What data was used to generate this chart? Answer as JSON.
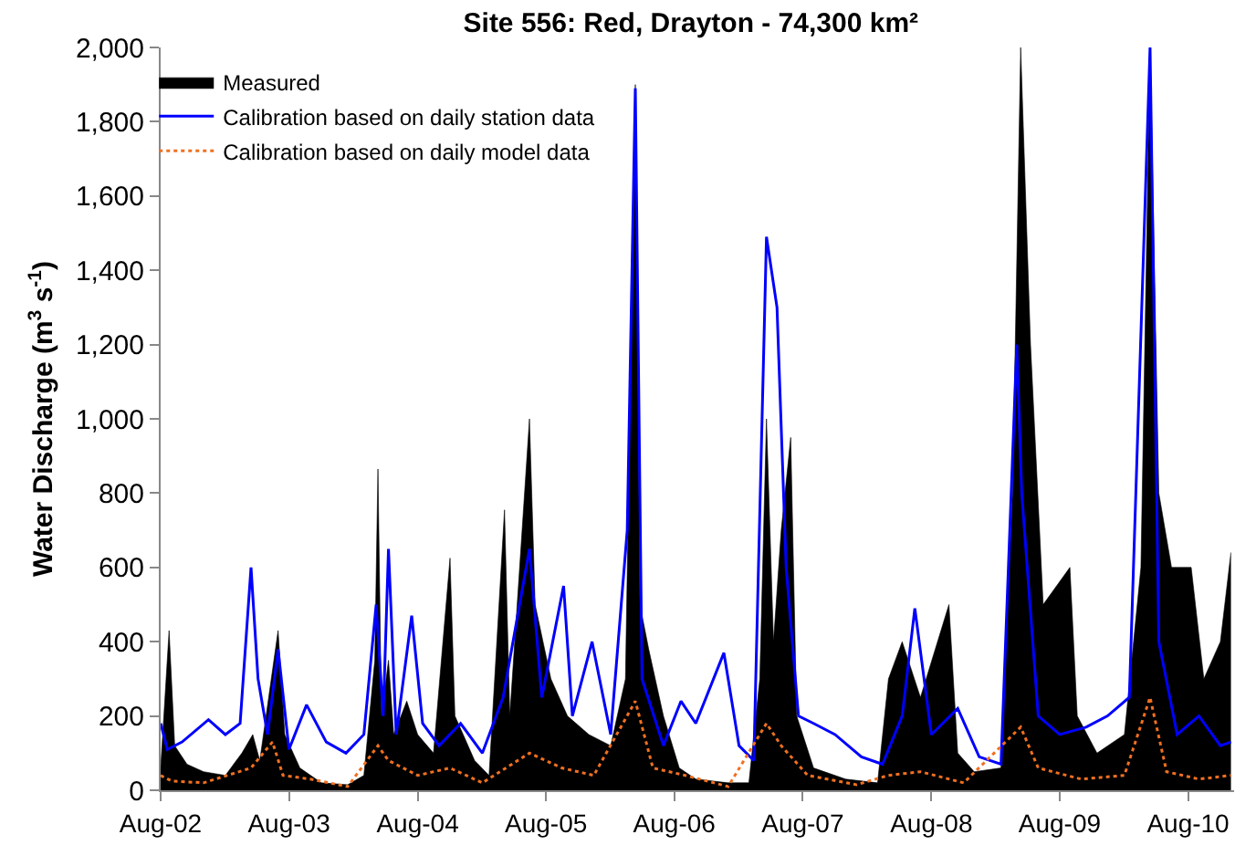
{
  "chart_data": {
    "type": "line",
    "title": "Site 556: Red, Drayton - 74,300 km²",
    "ylabel": "Water Discharge (m$^{3}$ s$^{-1}$)",
    "xlim": [
      "2002-08-01",
      "2010-12-10"
    ],
    "xticks": [
      {
        "value": "2002-08-01",
        "label": "Aug-02"
      },
      {
        "value": "2003-08-01",
        "label": "Aug-03"
      },
      {
        "value": "2004-08-01",
        "label": "Aug-04"
      },
      {
        "value": "2005-08-01",
        "label": "Aug-05"
      },
      {
        "value": "2006-08-01",
        "label": "Aug-06"
      },
      {
        "value": "2007-08-01",
        "label": "Aug-07"
      },
      {
        "value": "2008-08-01",
        "label": "Aug-08"
      },
      {
        "value": "2009-08-01",
        "label": "Aug-09"
      },
      {
        "value": "2010-08-01",
        "label": "Aug-10"
      }
    ],
    "ylim": [
      0,
      2000
    ],
    "yticks": [
      0,
      200,
      400,
      600,
      800,
      {
        "value": 1000,
        "label": "1,000"
      },
      {
        "value": 1200,
        "label": "1,200"
      },
      {
        "value": 1400,
        "label": "1,400"
      },
      {
        "value": 1600,
        "label": "1,600"
      },
      {
        "value": 1800,
        "label": "1,800"
      },
      {
        "value": 2000,
        "label": "2,000"
      }
    ],
    "grid": false,
    "legend": "top left",
    "marker": "none",
    "series": [
      {
        "name": "Measured",
        "type": "area",
        "color": "#000000",
        "x": [
          "2002-08-01",
          "2002-08-25",
          "2002-09-10",
          "2002-10-15",
          "2002-12-01",
          "2003-02-01",
          "2003-03-20",
          "2003-04-20",
          "2003-05-10",
          "2003-07-01",
          "2003-07-20",
          "2003-09-01",
          "2003-11-01",
          "2004-01-15",
          "2004-03-01",
          "2004-04-01",
          "2004-04-10",
          "2004-04-20",
          "2004-05-10",
          "2004-05-25",
          "2004-07-01",
          "2004-08-01",
          "2004-09-15",
          "2004-11-01",
          "2004-11-15",
          "2005-01-10",
          "2005-02-20",
          "2005-04-05",
          "2005-04-20",
          "2005-06-15",
          "2005-07-01",
          "2005-08-15",
          "2005-10-01",
          "2005-12-01",
          "2006-02-01",
          "2006-03-15",
          "2006-04-12",
          "2006-04-25",
          "2006-05-20",
          "2006-07-01",
          "2006-08-15",
          "2006-10-01",
          "2007-01-01",
          "2007-03-01",
          "2007-04-01",
          "2007-04-20",
          "2007-05-10",
          "2007-06-01",
          "2007-06-28",
          "2007-07-15",
          "2007-09-01",
          "2007-12-01",
          "2008-03-01",
          "2008-04-01",
          "2008-05-10",
          "2008-07-01",
          "2008-09-20",
          "2008-10-15",
          "2008-12-01",
          "2009-02-15",
          "2009-03-20",
          "2009-04-12",
          "2009-05-10",
          "2009-06-15",
          "2009-08-30",
          "2009-09-20",
          "2009-11-15",
          "2010-02-01",
          "2010-03-20",
          "2010-04-15",
          "2010-05-10",
          "2010-06-15",
          "2010-08-10",
          "2010-09-15",
          "2010-11-01",
          "2010-12-01"
        ],
        "values": [
          60,
          430,
          120,
          70,
          50,
          40,
          100,
          150,
          80,
          430,
          150,
          60,
          20,
          15,
          40,
          350,
          865,
          200,
          350,
          150,
          240,
          150,
          100,
          625,
          200,
          80,
          40,
          755,
          200,
          1000,
          500,
          300,
          200,
          150,
          120,
          300,
          1900,
          500,
          380,
          200,
          60,
          30,
          20,
          20,
          300,
          1000,
          400,
          700,
          950,
          200,
          60,
          30,
          20,
          300,
          400,
          250,
          500,
          100,
          50,
          60,
          800,
          2000,
          1200,
          500,
          600,
          200,
          100,
          150,
          600,
          2000,
          800,
          600,
          600,
          300,
          400,
          640
        ]
      },
      {
        "name": "Calibration based on daily station data",
        "type": "line",
        "line_style": "solid",
        "color": "#0000ff",
        "x": [
          "2002-08-01",
          "2002-08-20",
          "2002-10-01",
          "2002-12-15",
          "2003-02-01",
          "2003-03-15",
          "2003-04-15",
          "2003-05-05",
          "2003-06-01",
          "2003-07-01",
          "2003-08-01",
          "2003-09-20",
          "2003-11-15",
          "2004-01-10",
          "2004-03-01",
          "2004-04-05",
          "2004-04-25",
          "2004-05-10",
          "2004-06-01",
          "2004-07-15",
          "2004-08-15",
          "2004-10-01",
          "2004-12-01",
          "2005-02-01",
          "2005-04-01",
          "2005-06-15",
          "2005-07-20",
          "2005-09-20",
          "2005-10-15",
          "2005-12-10",
          "2006-02-01",
          "2006-03-20",
          "2006-04-12",
          "2006-05-01",
          "2006-07-01",
          "2006-08-20",
          "2006-10-01",
          "2006-12-20",
          "2007-02-01",
          "2007-03-15",
          "2007-04-20",
          "2007-05-20",
          "2007-06-15",
          "2007-07-20",
          "2007-09-01",
          "2007-11-01",
          "2008-01-15",
          "2008-03-15",
          "2008-05-10",
          "2008-06-15",
          "2008-08-01",
          "2008-10-15",
          "2008-12-15",
          "2009-02-15",
          "2009-04-01",
          "2009-04-15",
          "2009-06-01",
          "2009-08-01",
          "2009-10-15",
          "2009-12-15",
          "2010-02-15",
          "2010-04-15",
          "2010-05-10",
          "2010-07-01",
          "2010-09-01",
          "2010-11-01",
          "2010-12-01"
        ],
        "values": [
          180,
          110,
          130,
          190,
          150,
          180,
          600,
          300,
          150,
          380,
          110,
          230,
          130,
          100,
          150,
          500,
          200,
          650,
          150,
          470,
          180,
          120,
          180,
          100,
          250,
          650,
          250,
          550,
          200,
          400,
          150,
          700,
          1890,
          300,
          120,
          240,
          180,
          370,
          120,
          80,
          1490,
          1300,
          600,
          200,
          180,
          150,
          90,
          70,
          200,
          490,
          150,
          220,
          90,
          70,
          1200,
          800,
          200,
          150,
          170,
          200,
          250,
          2000,
          400,
          150,
          200,
          120,
          130
        ]
      },
      {
        "name": "Calibration based on daily model data",
        "type": "line",
        "line_style": "dotted",
        "color": "#f07020",
        "x": [
          "2002-08-01",
          "2002-09-01",
          "2002-12-01",
          "2003-04-15",
          "2003-06-15",
          "2003-07-15",
          "2003-10-01",
          "2004-01-15",
          "2004-04-10",
          "2004-05-10",
          "2004-08-01",
          "2004-11-01",
          "2005-02-01",
          "2005-06-15",
          "2005-09-15",
          "2005-12-15",
          "2006-04-12",
          "2006-06-01",
          "2006-09-01",
          "2007-01-01",
          "2007-04-20",
          "2007-06-01",
          "2007-08-15",
          "2008-01-01",
          "2008-04-01",
          "2008-07-01",
          "2008-11-01",
          "2009-04-12",
          "2009-06-01",
          "2009-10-01",
          "2010-02-01",
          "2010-04-15",
          "2010-06-01",
          "2010-09-01",
          "2010-12-01"
        ],
        "values": [
          40,
          25,
          20,
          60,
          130,
          40,
          30,
          10,
          120,
          80,
          40,
          60,
          20,
          100,
          60,
          40,
          240,
          60,
          40,
          10,
          180,
          120,
          40,
          15,
          40,
          50,
          20,
          170,
          60,
          30,
          40,
          250,
          50,
          30,
          40
        ]
      }
    ]
  }
}
